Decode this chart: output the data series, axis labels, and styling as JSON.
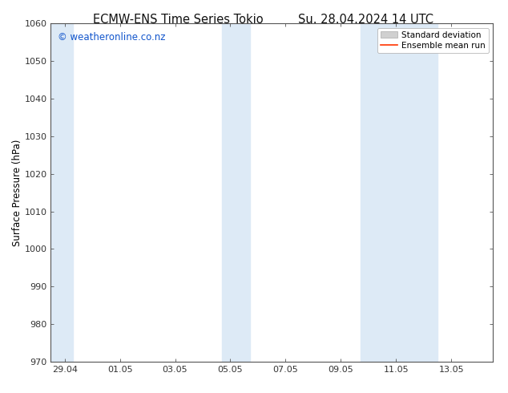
{
  "title_left": "ECMW-ENS Time Series Tokio",
  "title_right": "Su. 28.04.2024 14 UTC",
  "ylabel": "Surface Pressure (hPa)",
  "ylim": [
    970,
    1060
  ],
  "yticks": [
    970,
    980,
    990,
    1000,
    1010,
    1020,
    1030,
    1040,
    1050,
    1060
  ],
  "xtick_labels": [
    "29.04",
    "01.05",
    "03.05",
    "05.05",
    "07.05",
    "09.05",
    "11.05",
    "13.05"
  ],
  "xtick_positions": [
    0,
    2,
    4,
    6,
    8,
    10,
    12,
    14
  ],
  "xlim": [
    -0.5,
    15.5
  ],
  "shaded_bands": [
    {
      "x_start": -0.5,
      "x_end": 0.3,
      "color": "#ddeaf6"
    },
    {
      "x_start": 5.7,
      "x_end": 6.7,
      "color": "#ddeaf6"
    },
    {
      "x_start": 10.7,
      "x_end": 13.5,
      "color": "#ddeaf6"
    }
  ],
  "bg_color": "#ffffff",
  "plot_bg_color": "#ffffff",
  "legend_std_facecolor": "#d0d0d0",
  "legend_std_edgecolor": "#aaaaaa",
  "legend_mean_color": "#ff3300",
  "watermark_text": "© weatheronline.co.nz",
  "watermark_color": "#1155cc",
  "watermark_fontsize": 8.5,
  "title_fontsize": 10.5,
  "tick_fontsize": 8,
  "ylabel_fontsize": 8.5,
  "legend_fontsize": 7.5,
  "tick_color": "#333333",
  "spine_color": "#555555"
}
